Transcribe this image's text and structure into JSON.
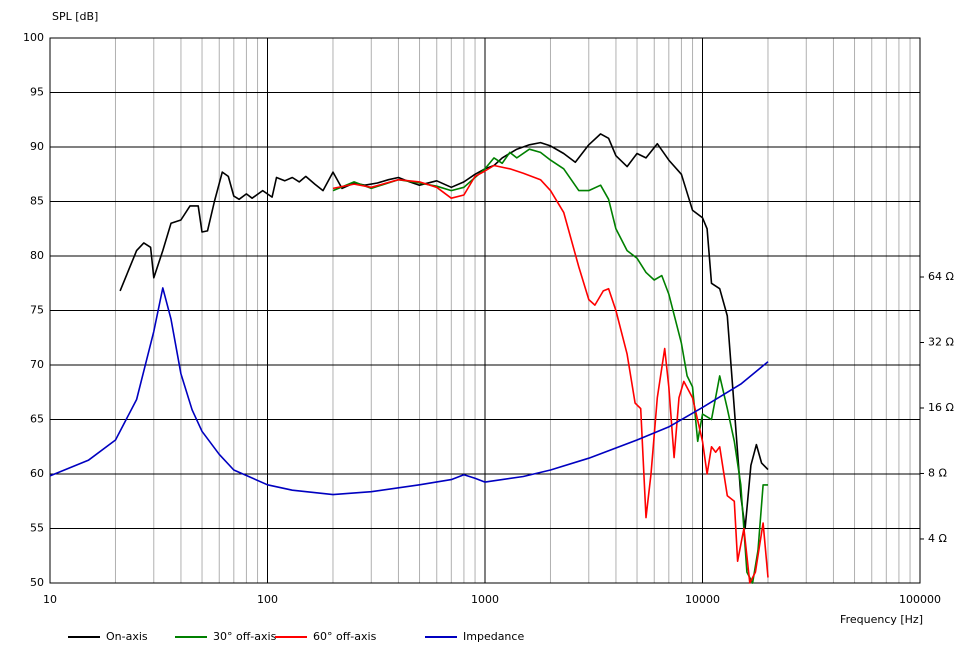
{
  "chart_data": {
    "type": "line",
    "ylabel": "SPL [dB]",
    "xlabel": "Frequency [Hz]",
    "xscale": "log",
    "y2scale": "log",
    "grid": true,
    "xlim": [
      10,
      100000
    ],
    "xticks": [
      10,
      100,
      1000,
      10000,
      100000
    ],
    "ylim": [
      50,
      100
    ],
    "yticks": [
      50,
      55,
      60,
      65,
      70,
      75,
      80,
      85,
      90,
      95,
      100
    ],
    "y2lim": [
      2.51,
      803
    ],
    "y2ticks": [
      {
        "value": 4,
        "label": "4 Ω"
      },
      {
        "value": 8,
        "label": "8 Ω"
      },
      {
        "value": 16,
        "label": "16 Ω"
      },
      {
        "value": 32,
        "label": "32 Ω"
      },
      {
        "value": 64,
        "label": "64 Ω"
      }
    ],
    "legend": "bottom",
    "series": [
      {
        "name": "On-axis",
        "color": "#000000",
        "x": [
          21,
          25,
          27,
          29,
          30,
          33,
          36,
          40,
          44,
          48,
          50,
          53,
          57,
          62,
          66,
          70,
          74,
          80,
          85,
          95,
          105,
          110,
          120,
          130,
          140,
          150,
          165,
          180,
          200,
          220,
          250,
          280,
          320,
          360,
          400,
          450,
          500,
          600,
          700,
          800,
          900,
          1000,
          1100,
          1200,
          1400,
          1600,
          1800,
          2000,
          2300,
          2600,
          3000,
          3400,
          3700,
          4000,
          4500,
          5000,
          5500,
          6200,
          7000,
          8000,
          9000,
          10000,
          10500,
          11000,
          12000,
          13000,
          14000,
          15000,
          15700,
          16700,
          17700,
          18700,
          20000
        ],
        "values": [
          76.8,
          80.5,
          81.2,
          80.8,
          78,
          80.5,
          83,
          83.3,
          84.6,
          84.6,
          82.2,
          82.3,
          85,
          87.7,
          87.3,
          85.5,
          85.2,
          85.7,
          85.3,
          86,
          85.4,
          87.2,
          86.9,
          87.2,
          86.8,
          87.3,
          86.6,
          86,
          87.7,
          86.2,
          86.7,
          86.5,
          86.7,
          87,
          87.2,
          86.8,
          86.5,
          86.9,
          86.3,
          86.8,
          87.5,
          88,
          88.3,
          89,
          89.8,
          90.2,
          90.4,
          90.1,
          89.4,
          88.6,
          90.2,
          91.2,
          90.8,
          89.2,
          88.2,
          89.4,
          89,
          90.3,
          88.8,
          87.5,
          84.2,
          83.5,
          82.5,
          77.5,
          77,
          74.5,
          66,
          58,
          55,
          60.8,
          62.7,
          61,
          60.4
        ]
      },
      {
        "name": "30° off-axis",
        "color": "#008000",
        "x": [
          200,
          250,
          300,
          400,
          500,
          600,
          700,
          800,
          900,
          1000,
          1100,
          1200,
          1300,
          1400,
          1600,
          1800,
          2000,
          2300,
          2700,
          3000,
          3400,
          3700,
          4000,
          4500,
          5000,
          5500,
          6000,
          6500,
          7000,
          8000,
          8500,
          9000,
          9500,
          10000,
          11000,
          12000,
          13000,
          14000,
          15000,
          16000,
          17000,
          18000,
          19000,
          20000
        ],
        "values": [
          86,
          86.8,
          86.2,
          87,
          86.7,
          86.4,
          86,
          86.3,
          87.2,
          88,
          89,
          88.5,
          89.5,
          89,
          89.8,
          89.5,
          88.8,
          88,
          86,
          86,
          86.5,
          85.2,
          82.5,
          80.5,
          79.8,
          78.5,
          77.8,
          78.2,
          76.5,
          72,
          69,
          68,
          63,
          65.5,
          65,
          69,
          66,
          63,
          59,
          51,
          50,
          53,
          59,
          59
        ]
      },
      {
        "name": "60° off-axis",
        "color": "#ff0000",
        "x": [
          200,
          250,
          300,
          400,
          500,
          600,
          700,
          800,
          900,
          1000,
          1100,
          1300,
          1500,
          1800,
          2000,
          2300,
          2700,
          3000,
          3200,
          3500,
          3700,
          4000,
          4500,
          4900,
          5200,
          5500,
          5800,
          6200,
          6700,
          7000,
          7400,
          7800,
          8200,
          9000,
          10000,
          10500,
          11000,
          11500,
          12000,
          13000,
          14000,
          14500,
          15500,
          16500,
          17500,
          19000,
          20000
        ],
        "values": [
          86.2,
          86.6,
          86.3,
          87,
          86.8,
          86.3,
          85.3,
          85.6,
          87.3,
          87.8,
          88.3,
          88,
          87.6,
          87,
          86,
          84,
          79,
          76,
          75.5,
          76.8,
          77,
          75,
          71,
          66.5,
          66,
          56,
          60,
          67,
          71.5,
          68,
          61.5,
          67,
          68.5,
          67,
          63,
          60,
          62.5,
          62,
          62.5,
          58,
          57.5,
          52,
          55,
          50,
          51,
          55.5,
          50.5
        ]
      },
      {
        "name": "Impedance",
        "color": "#0000c0",
        "axis": "y2",
        "x": [
          10,
          15,
          20,
          25,
          30,
          33,
          36,
          40,
          45,
          50,
          60,
          70,
          100,
          130,
          200,
          300,
          500,
          700,
          800,
          900,
          1000,
          1500,
          2000,
          3000,
          5000,
          7000,
          10000,
          15000,
          20000
        ],
        "values": [
          7.8,
          9.2,
          11.4,
          17.5,
          36,
          57,
          41,
          23,
          15.7,
          12.5,
          9.8,
          8.3,
          7.1,
          6.7,
          6.4,
          6.6,
          7.1,
          7.5,
          7.9,
          7.6,
          7.3,
          7.75,
          8.3,
          9.4,
          11.4,
          13.1,
          16.1,
          20.6,
          26.1
        ]
      }
    ]
  }
}
